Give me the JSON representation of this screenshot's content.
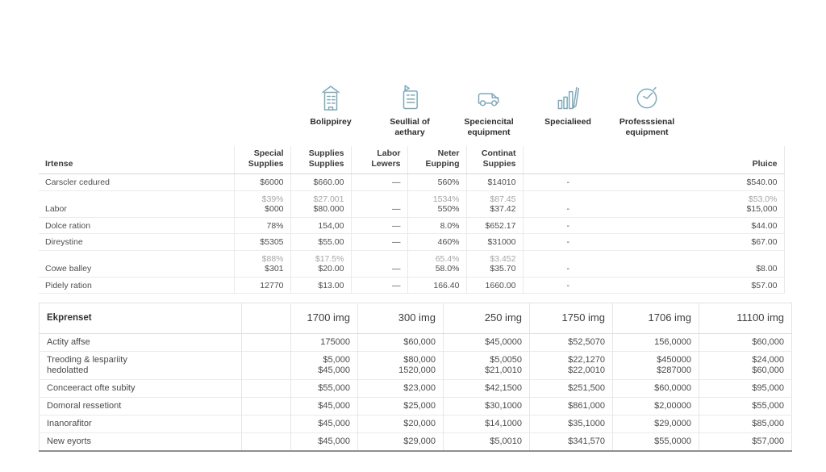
{
  "colors": {
    "icon_stroke": "#7fa9ba",
    "table_border_dark": "#8f8f8f"
  },
  "icons": [
    {
      "name": "building-icon",
      "label": "Bolippirey"
    },
    {
      "name": "receipt-icon",
      "label": "Seullial of\naethary"
    },
    {
      "name": "van-icon",
      "label": "Speciencital\nequipment"
    },
    {
      "name": "bar-chart-icon",
      "label": "Specialieed"
    },
    {
      "name": "clock-icon",
      "label": "Professsienal\nequipment"
    }
  ],
  "table1": {
    "columns": [
      "Irtense",
      "Special\nSupplies",
      "Supplies\nSupplies",
      "Labor\nLewers",
      "Neter\nEupping",
      "Continat\nSuppies",
      "",
      "Pluice"
    ],
    "rows": [
      {
        "label": "Carscler cedured",
        "cells": [
          "$6000",
          "$660.00",
          "—",
          "560%",
          "$14010",
          "-",
          "$540.00"
        ],
        "muted": [
          2,
          5
        ]
      },
      {
        "label": "Labor",
        "cells": [
          "$39%\n$000",
          "$27.001\n$80.000",
          "—",
          "1534%\n550%",
          "$87.45\n$37.42",
          "-",
          "$53.0%\n$15,000"
        ],
        "muted": [
          2,
          5
        ]
      },
      {
        "label": "Dolce ration",
        "cells": [
          "78%",
          "154,00",
          "—",
          "8.0%",
          "$652.17",
          "-",
          "$44.00"
        ],
        "muted": [
          2,
          5
        ]
      },
      {
        "label": "Direystine",
        "cells": [
          "$5305",
          "$55.00",
          "—",
          "460%",
          "$31000",
          "-",
          "$67.00"
        ],
        "muted": [
          2,
          5
        ]
      },
      {
        "label": "Cowe balley",
        "cells": [
          "$88%\n$301",
          "$17.5%\n$20.00",
          "—",
          "65.4%\n58.0%",
          "$3.452\n$35.70",
          "-",
          "$8.00"
        ],
        "muted": [
          2,
          5,
          6
        ]
      },
      {
        "label": "Pidely ration",
        "cells": [
          "12770",
          "$13.00",
          "—",
          "166.40",
          "1660.00",
          "-",
          "$57.00"
        ],
        "muted": [
          2,
          5,
          6
        ]
      }
    ]
  },
  "table2": {
    "columns": [
      "Ekprenset",
      "",
      "1700 img",
      "300 img",
      "250 img",
      "1750 img",
      "1706 img",
      "11100 img"
    ],
    "rows": [
      {
        "label": "Actity affse",
        "cells": [
          "",
          "175000",
          "$60,000",
          "$45,0000",
          "$52,5070",
          "156,0000",
          "$60,000"
        ]
      },
      {
        "label": "Treoding & lespariity\nhedolatted",
        "cells": [
          "",
          "$5,000\n$45,000",
          "$80,000\n1520,000",
          "$5,0050\n$21,0010",
          "$22,1270\n$22,0010",
          "$450000\n$287000",
          "$24,000\n$60,000"
        ]
      },
      {
        "label": "Conceeract ofte subity",
        "cells": [
          "",
          "$55,000",
          "$23,000",
          "$42,1500",
          "$251,500",
          "$60,0000",
          "$95,000"
        ]
      },
      {
        "label": "Domoral ressetiont",
        "cells": [
          "",
          "$45,000",
          "$25,000",
          "$30,1000",
          "$861,000",
          "$2,00000",
          "$55,000"
        ]
      },
      {
        "label": "Inanorafitor",
        "cells": [
          "",
          "$45,000",
          "$20,000",
          "$14,1000",
          "$35,1000",
          "$29,0000",
          "$85,000"
        ]
      },
      {
        "label": "New eyorts",
        "cells": [
          "",
          "$45,000",
          "$29,000",
          "$5,0010",
          "$341,570",
          "$55,0000",
          "$57,000"
        ]
      }
    ]
  }
}
